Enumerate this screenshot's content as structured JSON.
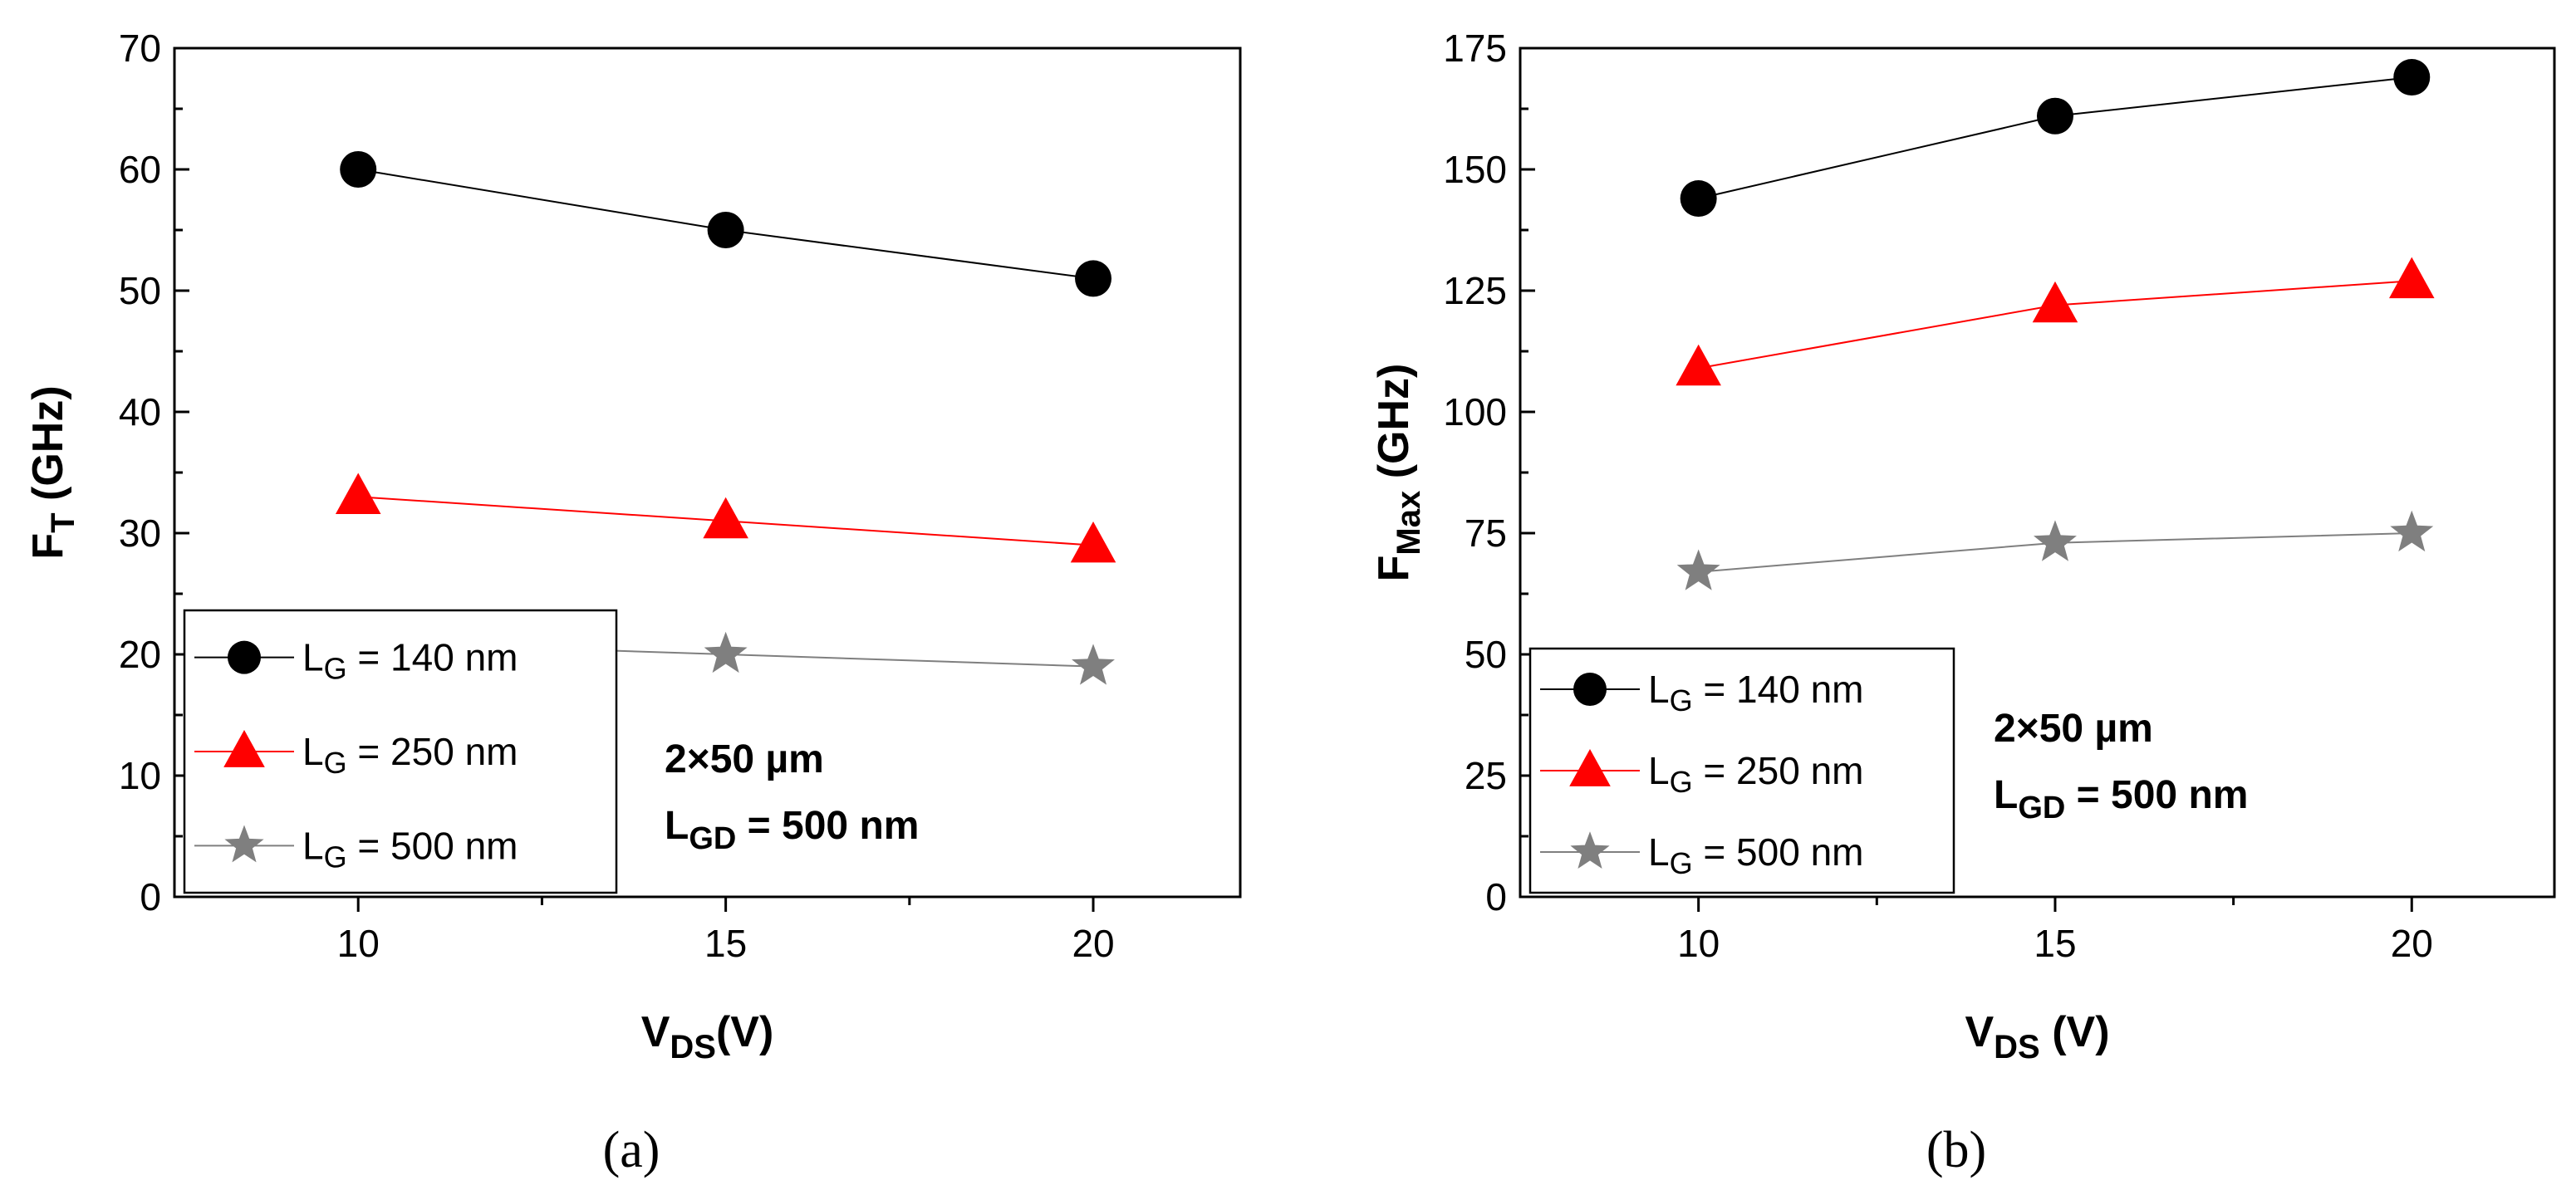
{
  "colors": {
    "series_140": "#000000",
    "series_250": "#ff0000",
    "series_500": "#7f7f7f",
    "axis": "#000000",
    "background": "#ffffff"
  },
  "chart_data": [
    {
      "type": "line",
      "panel_label": "(a)",
      "xlabel": {
        "main": "V",
        "sub": "DS",
        "tail": "(V)"
      },
      "ylabel": {
        "main": "F",
        "sub": "T",
        "tail": " (GHz)"
      },
      "xlim": [
        7.5,
        22
      ],
      "ylim": [
        0,
        70
      ],
      "xticks": [
        10,
        15,
        20
      ],
      "xtick_labels": [
        "10",
        "15",
        "20"
      ],
      "yticks": [
        0,
        10,
        20,
        30,
        40,
        50,
        60,
        70
      ],
      "ytick_labels": [
        "0",
        "10",
        "20",
        "30",
        "40",
        "50",
        "60",
        "70"
      ],
      "x": [
        10,
        15,
        20
      ],
      "series": [
        {
          "name": "L_G = 140 nm",
          "label_main": "L",
          "label_sub": "G",
          "label_tail": " = 140 nm",
          "marker": "circle",
          "color": "#000000",
          "values": [
            60,
            55,
            51
          ]
        },
        {
          "name": "L_G = 250 nm",
          "label_main": "L",
          "label_sub": "G",
          "label_tail": " = 250 nm",
          "marker": "triangle",
          "color": "#ff0000",
          "values": [
            33,
            31,
            29
          ]
        },
        {
          "name": "L_G = 500 nm",
          "label_main": "L",
          "label_sub": "G",
          "label_tail": " = 500 nm",
          "marker": "star",
          "color": "#7f7f7f",
          "values": [
            21,
            20,
            19
          ]
        }
      ],
      "legend_position": "bottom-left",
      "annotation": {
        "line1": "2×50 µm",
        "line2_main": "L",
        "line2_sub": "GD",
        "line2_tail": " = 500 nm"
      },
      "grid": false
    },
    {
      "type": "line",
      "panel_label": "(b)",
      "xlabel": {
        "main": "V",
        "sub": "DS",
        "tail": " (V)"
      },
      "ylabel": {
        "main": "F",
        "sub": "Max",
        "tail": " (GHz)"
      },
      "xlim": [
        7.5,
        22
      ],
      "ylim": [
        0,
        175
      ],
      "xticks": [
        10,
        15,
        20
      ],
      "xtick_labels": [
        "10",
        "15",
        "20"
      ],
      "yticks": [
        0,
        25,
        50,
        75,
        100,
        125,
        150,
        175
      ],
      "ytick_labels": [
        "0",
        "25",
        "50",
        "75",
        "100",
        "125",
        "150",
        "175"
      ],
      "x": [
        10,
        15,
        20
      ],
      "series": [
        {
          "name": "L_G = 140 nm",
          "label_main": "L",
          "label_sub": "G",
          "label_tail": " = 140 nm",
          "marker": "circle",
          "color": "#000000",
          "values": [
            144,
            161,
            169
          ]
        },
        {
          "name": "L_G = 250 nm",
          "label_main": "L",
          "label_sub": "G",
          "label_tail": " = 250 nm",
          "marker": "triangle",
          "color": "#ff0000",
          "values": [
            109,
            122,
            127
          ]
        },
        {
          "name": "L_G = 500 nm",
          "label_main": "L",
          "label_sub": "G",
          "label_tail": " = 500 nm",
          "marker": "star",
          "color": "#7f7f7f",
          "values": [
            67,
            73,
            75
          ]
        }
      ],
      "legend_position": "bottom-left",
      "annotation": {
        "line1": "2×50 µm",
        "line2_main": "L",
        "line2_sub": "GD",
        "line2_tail": " = 500 nm"
      },
      "grid": false
    }
  ]
}
